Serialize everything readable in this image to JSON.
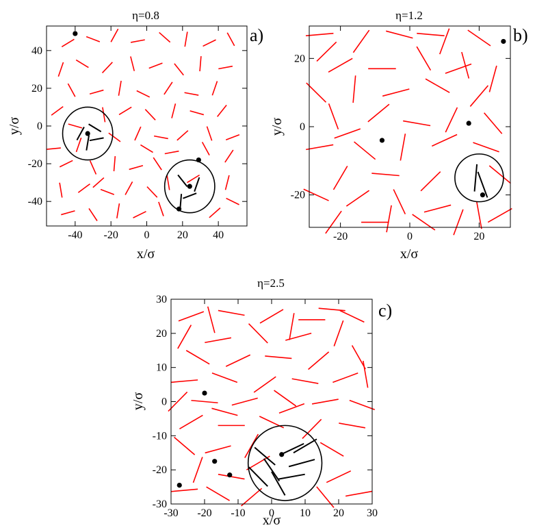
{
  "chart_data": [
    {
      "type": "scatter",
      "panel_label": "a)",
      "title": "η=0.8",
      "xlabel": "x/σ",
      "ylabel": "y/σ",
      "xlim": [
        -56,
        56
      ],
      "ylim": [
        -53,
        53
      ],
      "xticks": [
        -40,
        -20,
        0,
        20,
        40
      ],
      "yticks": [
        -40,
        -20,
        0,
        20,
        40
      ],
      "grid": false,
      "rod_length": 8,
      "rods_red": [
        [
          -44,
          44,
          30
        ],
        [
          -30,
          46,
          -20
        ],
        [
          -18,
          48,
          60
        ],
        [
          -5,
          45,
          10
        ],
        [
          10,
          47,
          -40
        ],
        [
          22,
          46,
          80
        ],
        [
          35,
          44,
          25
        ],
        [
          47,
          46,
          -60
        ],
        [
          -48,
          30,
          70
        ],
        [
          -36,
          33,
          -30
        ],
        [
          -22,
          31,
          45
        ],
        [
          -8,
          33,
          -75
        ],
        [
          5,
          32,
          20
        ],
        [
          18,
          30,
          -50
        ],
        [
          30,
          33,
          85
        ],
        [
          44,
          31,
          10
        ],
        [
          -42,
          19,
          -60
        ],
        [
          -28,
          18,
          15
        ],
        [
          -15,
          20,
          80
        ],
        [
          -2,
          17,
          -25
        ],
        [
          12,
          20,
          55
        ],
        [
          25,
          17,
          -10
        ],
        [
          38,
          20,
          70
        ],
        [
          -50,
          8,
          35
        ],
        [
          -24,
          6,
          -80
        ],
        [
          -12,
          8,
          30
        ],
        [
          2,
          6,
          -45
        ],
        [
          15,
          8,
          75
        ],
        [
          28,
          7,
          -15
        ],
        [
          42,
          8,
          50
        ],
        [
          -18,
          -6,
          -35
        ],
        [
          -5,
          -4,
          65
        ],
        [
          8,
          -6,
          -10
        ],
        [
          20,
          -5,
          40
        ],
        [
          35,
          -4,
          -70
        ],
        [
          48,
          -6,
          20
        ],
        [
          -45,
          -20,
          25
        ],
        [
          -30,
          -22,
          -65
        ],
        [
          -18,
          -20,
          85
        ],
        [
          -6,
          -22,
          15
        ],
        [
          6,
          -20,
          -55
        ],
        [
          -48,
          -34,
          -80
        ],
        [
          -35,
          -33,
          35
        ],
        [
          -22,
          -35,
          -20
        ],
        [
          -10,
          -33,
          60
        ],
        [
          3,
          -35,
          -45
        ],
        [
          45,
          -30,
          75
        ],
        [
          -44,
          -46,
          15
        ],
        [
          -30,
          -47,
          -55
        ],
        [
          -16,
          -45,
          80
        ],
        [
          -4,
          -47,
          25
        ],
        [
          8,
          -44,
          -70
        ],
        [
          38,
          -46,
          40
        ],
        [
          48,
          -40,
          -25
        ],
        [
          -38,
          -10,
          70
        ],
        [
          0,
          -12,
          -30
        ],
        [
          14,
          -14,
          10
        ],
        [
          46,
          -16,
          55
        ],
        [
          -40,
          0,
          -15
        ],
        [
          26,
          -28,
          30
        ],
        [
          -52,
          -12,
          5
        ],
        [
          12,
          -30,
          -80
        ],
        [
          -27,
          -30,
          40
        ],
        [
          33,
          -12,
          -60
        ]
      ],
      "clusters": [
        {
          "center": [
            -33,
            -4
          ],
          "radius": 14,
          "rods": [
            [
              -37,
              -4,
              60
            ],
            [
              -29,
              -1,
              -30
            ],
            [
              -33,
              -9,
              80
            ],
            [
              -28,
              -7,
              10
            ]
          ]
        },
        {
          "center": [
            24,
            -32
          ],
          "radius": 14,
          "rods": [
            [
              20,
              -29,
              -50
            ],
            [
              28,
              -31,
              70
            ],
            [
              24,
              -37,
              20
            ],
            [
              19,
              -40,
              85
            ]
          ]
        }
      ],
      "points": [
        [
          -40,
          49
        ],
        [
          -33,
          -4
        ],
        [
          29,
          -18
        ],
        [
          24,
          -32
        ],
        [
          18,
          -44
        ]
      ]
    },
    {
      "type": "scatter",
      "panel_label": "b)",
      "title": "η=1.2",
      "xlabel": "x/σ",
      "ylabel": "y/σ",
      "xlim": [
        -29,
        29
      ],
      "ylim": [
        -29.5,
        29.5
      ],
      "xticks": [
        -20,
        0,
        20
      ],
      "yticks": [
        -20,
        0,
        20
      ],
      "grid": false,
      "rod_length": 8,
      "rods_red": [
        [
          -26,
          27,
          5
        ],
        [
          -14,
          25,
          55
        ],
        [
          -3,
          27,
          -15
        ],
        [
          10,
          25,
          70
        ],
        [
          20,
          26,
          -35
        ],
        [
          -20,
          18,
          30
        ],
        [
          -8,
          17,
          0
        ],
        [
          4,
          20,
          -60
        ],
        [
          14,
          17,
          20
        ],
        [
          24,
          14,
          75
        ],
        [
          -27,
          10,
          -45
        ],
        [
          -16,
          11,
          85
        ],
        [
          -4,
          10,
          15
        ],
        [
          8,
          12,
          -30
        ],
        [
          20,
          9,
          50
        ],
        [
          -22,
          3,
          -70
        ],
        [
          -9,
          4,
          40
        ],
        [
          2,
          1,
          -10
        ],
        [
          12,
          2,
          65
        ],
        [
          24,
          1,
          -50
        ],
        [
          -26,
          -6,
          10
        ],
        [
          -13,
          -7,
          -40
        ],
        [
          -2,
          -6,
          80
        ],
        [
          10,
          -4,
          25
        ],
        [
          22,
          -6,
          -20
        ],
        [
          -20,
          -15,
          60
        ],
        [
          -7,
          -14,
          -5
        ],
        [
          6,
          -16,
          45
        ],
        [
          -27,
          -20,
          -25
        ],
        [
          -15,
          -21,
          35
        ],
        [
          -3,
          -22,
          -65
        ],
        [
          8,
          -24,
          15
        ],
        [
          20,
          -26,
          -80
        ],
        [
          -22,
          -28,
          55
        ],
        [
          -10,
          -28,
          0
        ],
        [
          4,
          -28,
          -35
        ],
        [
          14,
          -28,
          70
        ],
        [
          26,
          -26,
          30
        ],
        [
          -18,
          -2,
          20
        ],
        [
          16,
          18,
          -75
        ],
        [
          -24,
          22,
          45
        ],
        [
          6,
          27,
          -5
        ],
        [
          -6,
          -27,
          80
        ],
        [
          26,
          -14,
          -40
        ]
      ],
      "clusters": [
        {
          "center": [
            20,
            -15
          ],
          "radius": 7,
          "rods": [
            [
              19,
              -15,
              85
            ],
            [
              21,
              -17,
              -70
            ]
          ]
        }
      ],
      "points": [
        [
          -8,
          -4
        ],
        [
          17,
          1
        ],
        [
          27,
          25
        ],
        [
          21,
          -20
        ]
      ]
    },
    {
      "type": "scatter",
      "panel_label": "c)",
      "title": "η=2.5",
      "xlabel": "x/σ",
      "ylabel": "y/σ",
      "xlim": [
        -30,
        30
      ],
      "ylim": [
        -30,
        30
      ],
      "xticks": [
        -30,
        -20,
        -10,
        0,
        10,
        20,
        30
      ],
      "yticks": [
        -30,
        -20,
        -10,
        0,
        10,
        20,
        30
      ],
      "grid": false,
      "rod_length": 8,
      "rods_red": [
        [
          -24,
          25,
          20
        ],
        [
          -12,
          26,
          -10
        ],
        [
          0,
          25,
          30
        ],
        [
          12,
          24,
          0
        ],
        [
          24,
          25,
          -25
        ],
        [
          -26,
          19,
          60
        ],
        [
          -16,
          18,
          10
        ],
        [
          -4,
          20,
          -45
        ],
        [
          8,
          19,
          15
        ],
        [
          20,
          20,
          70
        ],
        [
          -22,
          13,
          -30
        ],
        [
          -10,
          12,
          25
        ],
        [
          2,
          13,
          -5
        ],
        [
          14,
          12,
          40
        ],
        [
          26,
          13,
          -60
        ],
        [
          -26,
          6,
          5
        ],
        [
          -14,
          7,
          -20
        ],
        [
          -2,
          5,
          35
        ],
        [
          10,
          6,
          -10
        ],
        [
          22,
          7,
          20
        ],
        [
          -20,
          0,
          -5
        ],
        [
          -8,
          0,
          15
        ],
        [
          4,
          1,
          -35
        ],
        [
          16,
          0,
          10
        ],
        [
          27,
          -1,
          -20
        ],
        [
          -24,
          -6,
          30
        ],
        [
          -12,
          -7,
          0
        ],
        [
          0,
          -6,
          -25
        ],
        [
          12,
          -8,
          45
        ],
        [
          24,
          -7,
          -10
        ],
        [
          -26,
          -13,
          -40
        ],
        [
          -16,
          -14,
          15
        ],
        [
          -6,
          -13,
          60
        ],
        [
          18,
          -14,
          -30
        ],
        [
          -22,
          -20,
          70
        ],
        [
          -12,
          -22,
          -10
        ],
        [
          20,
          -22,
          25
        ],
        [
          -26,
          -26,
          5
        ],
        [
          -16,
          -27,
          -30
        ],
        [
          -6,
          -28,
          40
        ],
        [
          16,
          -28,
          -50
        ],
        [
          26,
          -27,
          10
        ],
        [
          -18,
          24,
          -75
        ],
        [
          6,
          22,
          80
        ],
        [
          18,
          27,
          -5
        ],
        [
          -28,
          0,
          45
        ],
        [
          28,
          8,
          -80
        ],
        [
          -4,
          -18,
          30
        ],
        [
          -14,
          -3,
          -15
        ],
        [
          6,
          -2,
          20
        ]
      ],
      "clusters": [
        {
          "center": [
            4,
            -18
          ],
          "radius": 11,
          "rods": [
            [
              -2,
              -16,
              -40
            ],
            [
              0,
              -20,
              -55
            ],
            [
              6,
              -14,
              25
            ],
            [
              9,
              -18,
              15
            ],
            [
              6,
              -22,
              10
            ],
            [
              2,
              -24,
              -60
            ],
            [
              10,
              -13,
              30
            ],
            [
              -4,
              -22,
              -45
            ]
          ]
        }
      ],
      "points": [
        [
          -20,
          2.5
        ],
        [
          3,
          -15.5
        ],
        [
          -17,
          -17.5
        ],
        [
          -12.5,
          -21.5
        ],
        [
          -27.5,
          -24.5
        ]
      ]
    }
  ]
}
